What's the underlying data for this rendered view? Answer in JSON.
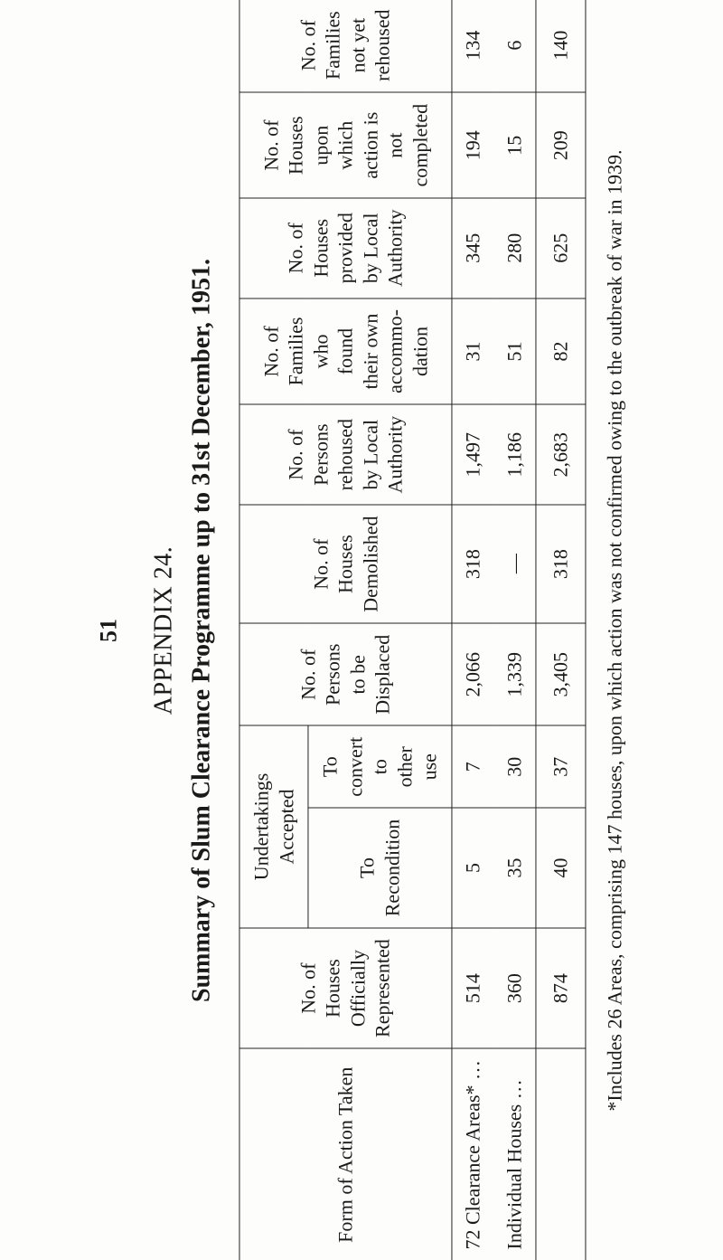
{
  "page_number": "51",
  "appendix_label": "APPENDIX 24.",
  "title": "Summary of Slum Clearance Programme up to 31st December, 1951.",
  "table": {
    "col_form": "Form of Action Taken",
    "col_officially_represented": "No. of Houses Officially Represented",
    "group_undertakings": "Undertakings Accepted",
    "col_recondition": "To Recondition",
    "col_convert": "To convert to other use",
    "col_displaced": "No. of Persons to be Displaced",
    "col_demolished": "No. of Houses Demolished",
    "col_rehoused_persons": "No. of Persons rehoused by Local Authority",
    "col_found_own": "No. of Families who found their own accommo­dation",
    "col_houses_provided": "No. of Houses provided by Local Authority",
    "col_action_not_completed": "No. of Houses upon which action is not completed",
    "col_not_yet_rehoused": "No. of Families not yet rehoused",
    "rows": [
      {
        "label": "72 Clearance Areas* …",
        "officially_represented": "514",
        "recondition": "5",
        "convert": "7",
        "displaced": "2,066",
        "demolished": "318",
        "rehoused_persons": "1,497",
        "found_own": "31",
        "houses_provided": "345",
        "action_not_completed": "194",
        "not_yet_rehoused": "134"
      },
      {
        "label": "Individual Houses …",
        "officially_represented": "360",
        "recondition": "35",
        "convert": "30",
        "displaced": "1,339",
        "demolished": "—",
        "rehoused_persons": "1,186",
        "found_own": "51",
        "houses_provided": "280",
        "action_not_completed": "15",
        "not_yet_rehoused": "6"
      }
    ],
    "totals": {
      "officially_represented": "874",
      "recondition": "40",
      "convert": "37",
      "displaced": "3,405",
      "demolished": "318",
      "rehoused_persons": "2,683",
      "found_own": "82",
      "houses_provided": "625",
      "action_not_completed": "209",
      "not_yet_rehoused": "140"
    }
  },
  "footnote": "*Includes 26 Areas, comprising 147 houses, upon which action was not confirmed owing to the outbreak of war in 1939."
}
